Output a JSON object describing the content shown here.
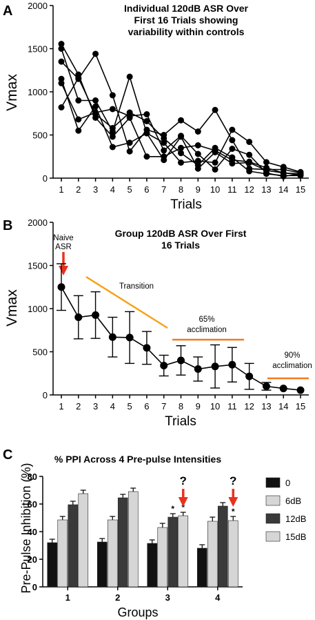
{
  "panels": {
    "A": {
      "letter": "A"
    },
    "B": {
      "letter": "B"
    },
    "C": {
      "letter": "C"
    }
  },
  "colors": {
    "annotation_red": "#e8321e",
    "annotation_orange": "#f5a21a",
    "acclimation_orange": "#f07a20",
    "bar_0": "#111111",
    "bar_6dB": "#d6d6d6",
    "bar_12dB": "#3a3a3a",
    "bar_15dB": "#d6d6d6"
  },
  "chart_data": [
    {
      "id": "A",
      "type": "line",
      "title": "Individual 120dB ASR Over First 16 Trials showing variability within controls",
      "title_lines": [
        "Individual 120dB ASR Over",
        "First 16 Trials showing",
        "variability within controls"
      ],
      "xlabel": "Trials",
      "ylabel": "Vmax",
      "x": [
        1,
        2,
        3,
        4,
        5,
        6,
        7,
        8,
        9,
        10,
        11,
        12,
        13,
        14,
        15
      ],
      "ylim": [
        0,
        2000
      ],
      "yticks": [
        0,
        500,
        1000,
        1500,
        2000
      ],
      "series": [
        {
          "values": [
            1555,
            1200,
            700,
            480,
            700,
            250,
            250,
            350,
            380,
            320,
            210,
            190,
            120,
            60,
            40
          ]
        },
        {
          "values": [
            1500,
            900,
            900,
            540,
            1175,
            520,
            410,
            180,
            200,
            180,
            560,
            420,
            185,
            130,
            70
          ]
        },
        {
          "values": [
            1350,
            1150,
            1440,
            960,
            310,
            560,
            500,
            670,
            540,
            790,
            440,
            110,
            100,
            100,
            60
          ]
        },
        {
          "values": [
            1150,
            550,
            830,
            360,
            410,
            520,
            210,
            480,
            110,
            300,
            170,
            180,
            90,
            60,
            50
          ]
        },
        {
          "values": [
            1100,
            680,
            760,
            800,
            720,
            740,
            320,
            490,
            280,
            100,
            340,
            270,
            60,
            20,
            50
          ]
        },
        {
          "values": [
            820,
            1160,
            740,
            580,
            760,
            660,
            460,
            290,
            150,
            350,
            240,
            80,
            50,
            30,
            30
          ]
        }
      ]
    },
    {
      "id": "B",
      "type": "line",
      "title": "Group 120dB ASR Over First 16 Trials",
      "title_lines": [
        "Group 120dB ASR Over First",
        "16 Trials"
      ],
      "xlabel": "Trials",
      "ylabel": "Vmax",
      "x": [
        1,
        2,
        3,
        4,
        5,
        6,
        7,
        8,
        9,
        10,
        11,
        12,
        13,
        14,
        15
      ],
      "ylim": [
        0,
        2000
      ],
      "yticks": [
        0,
        500,
        1000,
        1500,
        2000
      ],
      "series": [
        {
          "values": [
            1250,
            900,
            925,
            670,
            665,
            545,
            340,
            400,
            300,
            330,
            350,
            215,
            100,
            75,
            55
          ],
          "error": [
            270,
            250,
            270,
            230,
            300,
            190,
            120,
            170,
            140,
            250,
            200,
            150,
            45,
            0,
            0
          ]
        }
      ],
      "annotations": {
        "naive": [
          "Naive",
          "ASR"
        ],
        "transition": "Transition",
        "acc65": [
          "65%",
          "acclimation"
        ],
        "acc90": [
          "90%",
          "acclimation"
        ]
      }
    },
    {
      "id": "C",
      "type": "bar",
      "title": "% PPI Across 4 Pre-pulse Intensities",
      "xlabel": "Groups",
      "ylabel": "Pre-Pulse Inhibition (%)",
      "ylim": [
        0,
        80
      ],
      "yticks": [
        0,
        20,
        40,
        60,
        80
      ],
      "categories": [
        "1",
        "2",
        "3",
        "4"
      ],
      "series": [
        {
          "name": "0",
          "values": [
            32,
            32.5,
            31.5,
            28
          ],
          "error": [
            2.5,
            2.5,
            2.5,
            2.5
          ]
        },
        {
          "name": "6dB",
          "values": [
            48.5,
            48.5,
            43,
            47.5
          ],
          "error": [
            2.5,
            2.5,
            3,
            3
          ]
        },
        {
          "name": "12dB",
          "values": [
            59.5,
            64.5,
            50.5,
            58.5
          ],
          "error": [
            2.5,
            2.5,
            2.5,
            2.5
          ]
        },
        {
          "name": "15dB",
          "values": [
            67.5,
            69,
            51.5,
            48
          ],
          "error": [
            2.5,
            2.5,
            2.5,
            3
          ]
        }
      ],
      "legend": "right",
      "significance_marks": [
        {
          "group": 3,
          "series": 2,
          "text": "*"
        },
        {
          "group": 3,
          "series": 3,
          "text": "*"
        },
        {
          "group": 4,
          "series": 3,
          "text": "*"
        }
      ],
      "question_marks": [
        {
          "group": 3,
          "text": "?"
        },
        {
          "group": 4,
          "text": "?"
        }
      ]
    }
  ]
}
